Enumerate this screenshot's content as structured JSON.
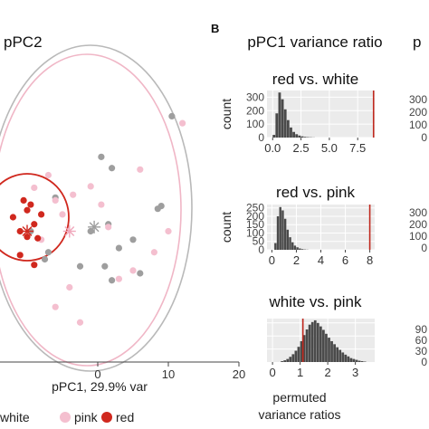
{
  "panel_a": {
    "title": "pPC2",
    "xlabel": "pPC1, 29.9% var",
    "x_ticks": [
      "0",
      "10",
      "20"
    ],
    "legend": [
      {
        "label": "white",
        "color": "#9e9e9e"
      },
      {
        "label": "pink",
        "color": "#f4bfcf"
      },
      {
        "label": "red",
        "color": "#d0281e"
      }
    ]
  },
  "panel_b": {
    "label": "B",
    "title": "pPC1 variance ratio",
    "title_right": "p",
    "xlabel_line1": "permuted",
    "xlabel_line2": "variance ratios",
    "subplots": [
      {
        "title": "red vs. white",
        "y_ticks": [
          "300",
          "200",
          "100",
          "0"
        ],
        "x_ticks": [
          "0.0",
          "2.5",
          "5.0",
          "7.5"
        ]
      },
      {
        "title": "red vs. pink",
        "y_ticks": [
          "250",
          "200",
          "150",
          "100",
          "50",
          "0"
        ],
        "x_ticks": [
          "0",
          "2",
          "4",
          "6",
          "8"
        ]
      },
      {
        "title": "white vs. pink",
        "y_ticks": [],
        "x_ticks": [
          "0",
          "1",
          "2",
          "3"
        ]
      }
    ],
    "right_y_ticks_1": [
      "300",
      "200",
      "100",
      "0"
    ],
    "right_y_ticks_2": [
      "300",
      "200",
      "100",
      "0"
    ],
    "right_y_ticks_3": [
      "90",
      "60",
      "30",
      "0"
    ]
  },
  "chart_data": [
    {
      "type": "scatter",
      "title": "pPC2",
      "xlabel": "pPC1, 29.9% var",
      "xlim": [
        -13,
        20
      ],
      "ylim": [
        -14,
        10
      ],
      "series": [
        {
          "name": "white",
          "color": "#9e9e9e",
          "x": [
            10.5,
            0.5,
            2,
            -6,
            1.5,
            -1,
            8.5,
            3,
            5,
            1,
            6,
            -7.5,
            -2.5,
            2,
            -9.5,
            -7,
            9
          ],
          "y": [
            7.2,
            4.3,
            3.5,
            1.4,
            -0.5,
            -1,
            0.6,
            -2.2,
            -1.6,
            -3.5,
            -4,
            -3,
            -3.5,
            -4.5,
            -1,
            -2.5,
            0.8
          ]
        },
        {
          "name": "pink",
          "color": "#f4bfcf",
          "x": [
            12,
            -7,
            6,
            -1,
            -3.5,
            10,
            1.5,
            -4,
            3,
            -6,
            5,
            -8,
            -2.5,
            0.5,
            -5,
            8,
            -9,
            -6
          ],
          "y": [
            6.7,
            3,
            3.4,
            2.2,
            1.6,
            -1,
            -0.7,
            -5,
            -4.4,
            -6.4,
            -3.8,
            -1.6,
            -7.5,
            0.9,
            0.2,
            -2.5,
            2.1,
            1.2
          ]
        },
        {
          "name": "red",
          "color": "#d0281e",
          "x": [
            -12,
            -11,
            -10,
            -9,
            -8,
            -11,
            -9,
            -10,
            -8.5,
            -10.5,
            -9.5
          ],
          "y": [
            0,
            -1,
            0.5,
            -0.5,
            0.2,
            -2.7,
            -3.4,
            -1.4,
            -1.5,
            1.2,
            0.9
          ]
        }
      ],
      "centroids": [
        {
          "name": "red",
          "x": -10,
          "y": -1
        },
        {
          "name": "pink",
          "x": -4,
          "y": -1
        },
        {
          "name": "white",
          "x": -0.5,
          "y": -0.7
        }
      ]
    },
    {
      "type": "bar",
      "title": "red vs. white",
      "xlabel": "permuted variance ratios",
      "ylabel": "count",
      "xlim": [
        -0.5,
        9
      ],
      "ylim": [
        0,
        350
      ],
      "bin_width": 0.25,
      "bin_start": 0,
      "values": [
        20,
        180,
        335,
        285,
        210,
        130,
        75,
        42,
        25,
        15,
        9,
        5,
        3,
        2,
        1
      ],
      "observed": 8.9
    },
    {
      "type": "bar",
      "title": "red vs. pink",
      "xlabel": "permuted variance ratios",
      "ylabel": "count",
      "xlim": [
        -0.4,
        8.4
      ],
      "ylim": [
        0,
        270
      ],
      "bin_width": 0.2,
      "bin_start": 0.2,
      "values": [
        40,
        200,
        255,
        235,
        185,
        120,
        75,
        45,
        25,
        15,
        8,
        4,
        2,
        1
      ],
      "observed": 8.0
    },
    {
      "type": "bar",
      "title": "white vs. pink",
      "xlabel": "permuted variance ratios",
      "ylabel": "count",
      "xlim": [
        -0.2,
        3.7
      ],
      "ylim": [
        0,
        100
      ],
      "bin_width": 0.1,
      "bin_start": 0.3,
      "values": [
        2,
        4,
        7,
        12,
        18,
        26,
        35,
        48,
        62,
        75,
        86,
        92,
        96,
        90,
        82,
        74,
        65,
        56,
        48,
        41,
        34,
        28,
        22,
        17,
        13,
        9,
        7,
        5,
        3,
        2,
        1
      ],
      "observed": 1.1
    }
  ]
}
